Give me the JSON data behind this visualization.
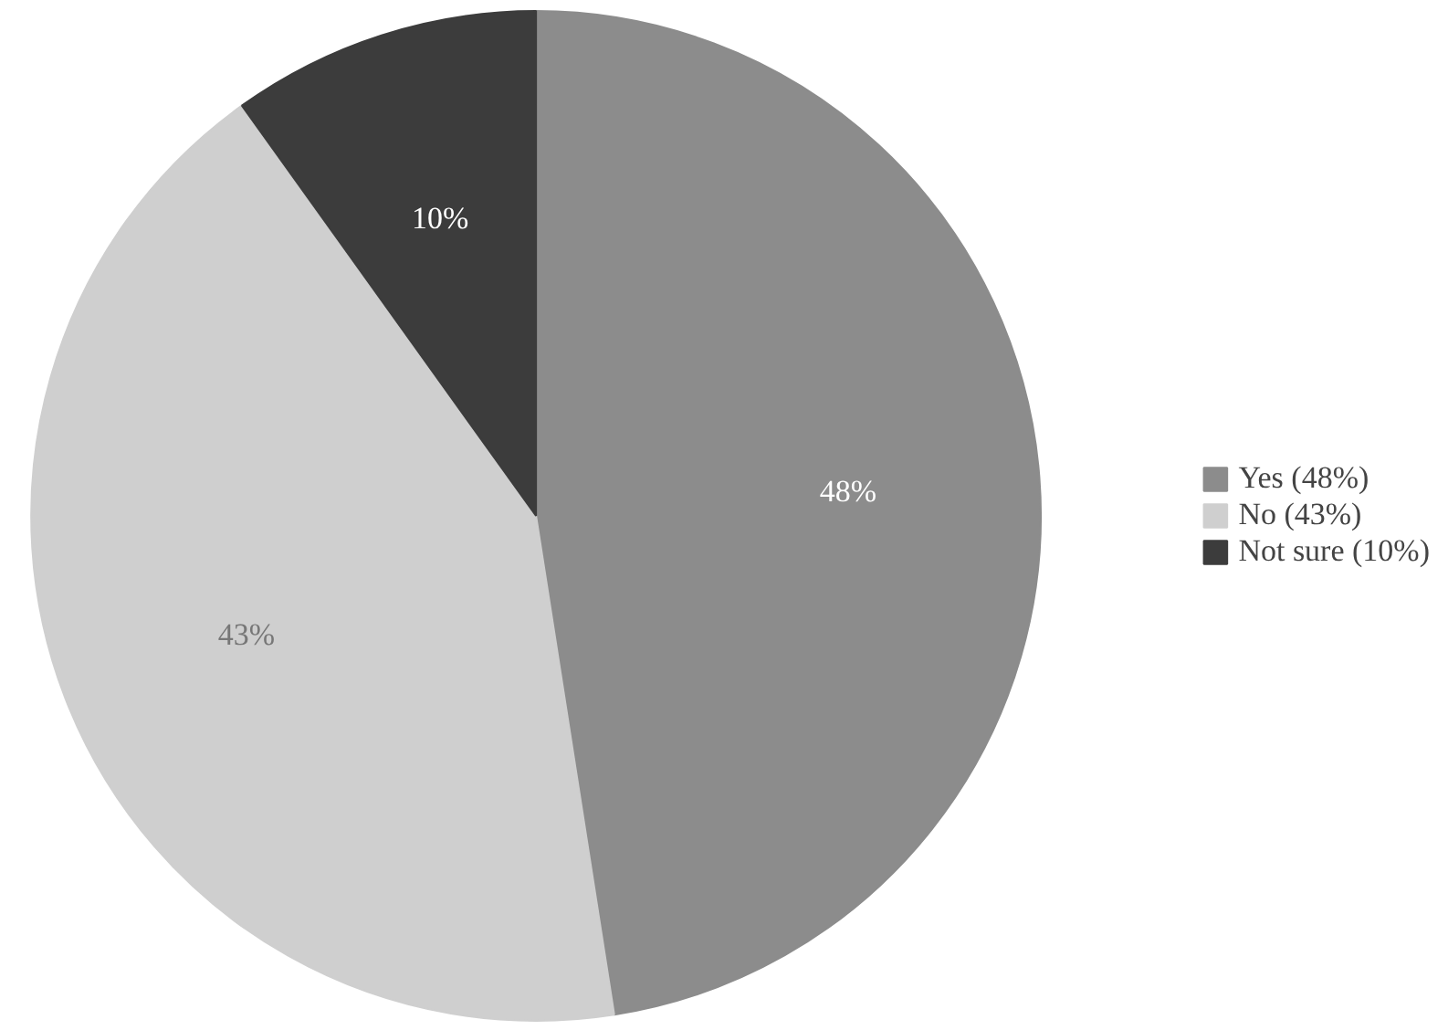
{
  "chart_data": {
    "type": "pie",
    "categories": [
      "Yes (48%)",
      "No (43%)",
      "Not sure (10%)"
    ],
    "values": [
      48,
      43,
      10
    ],
    "colors": [
      "#8c8c8c",
      "#cfcfcf",
      "#3c3c3c"
    ],
    "value_labels": [
      "48%",
      "43%",
      "10%"
    ],
    "legend": "right"
  }
}
